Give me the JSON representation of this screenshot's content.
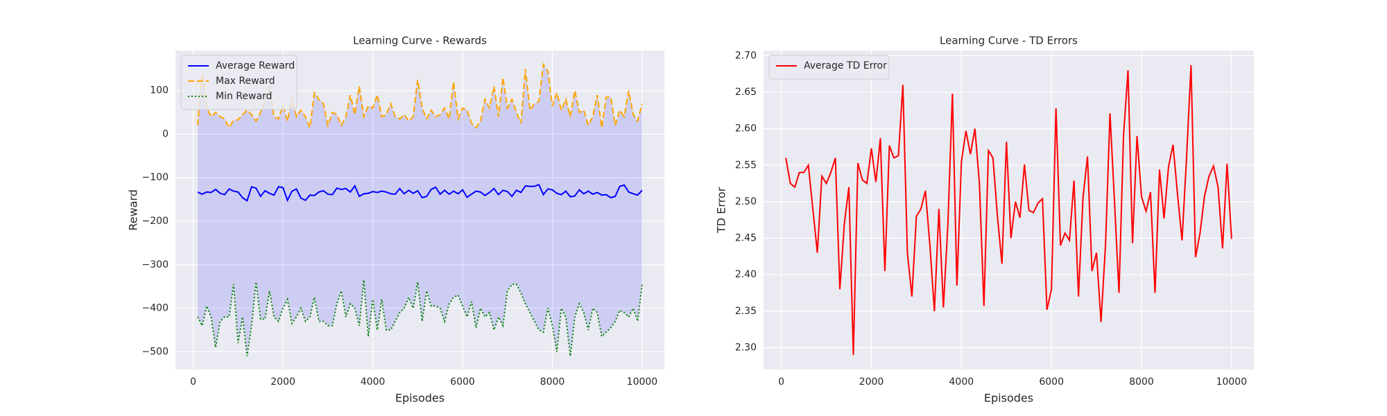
{
  "chart_data": [
    {
      "type": "line",
      "title": "Learning Curve - Rewards",
      "xlabel": "Episodes",
      "ylabel": "Reward",
      "x": [
        100,
        200,
        300,
        400,
        500,
        600,
        700,
        800,
        900,
        1000,
        1100,
        1200,
        1300,
        1400,
        1500,
        1600,
        1700,
        1800,
        1900,
        2000,
        2100,
        2200,
        2300,
        2400,
        2500,
        2600,
        2700,
        2800,
        2900,
        3000,
        3100,
        3200,
        3300,
        3400,
        3500,
        3600,
        3700,
        3800,
        3900,
        4000,
        4100,
        4200,
        4300,
        4400,
        4500,
        4600,
        4700,
        4800,
        4900,
        5000,
        5100,
        5200,
        5300,
        5400,
        5500,
        5600,
        5700,
        5800,
        5900,
        6000,
        6100,
        6200,
        6300,
        6400,
        6500,
        6600,
        6700,
        6800,
        6900,
        7000,
        7100,
        7200,
        7300,
        7400,
        7500,
        7600,
        7700,
        7800,
        7900,
        8000,
        8100,
        8200,
        8300,
        8400,
        8500,
        8600,
        8700,
        8800,
        8900,
        9000,
        9100,
        9200,
        9300,
        9400,
        9500,
        9600,
        9700,
        9800,
        9900,
        10000
      ],
      "series": [
        {
          "name": "Average Reward",
          "color": "#0000ff",
          "linestyle": "solid",
          "values": [
            -133,
            -138,
            -133,
            -134,
            -127,
            -136,
            -139,
            -126,
            -131,
            -133,
            -146,
            -153,
            -121,
            -124,
            -143,
            -130,
            -136,
            -140,
            -121,
            -123,
            -152,
            -131,
            -126,
            -147,
            -152,
            -140,
            -141,
            -133,
            -130,
            -138,
            -139,
            -124,
            -127,
            -125,
            -133,
            -119,
            -143,
            -137,
            -136,
            -132,
            -134,
            -131,
            -133,
            -137,
            -138,
            -125,
            -137,
            -129,
            -136,
            -130,
            -146,
            -143,
            -127,
            -122,
            -138,
            -129,
            -138,
            -131,
            -137,
            -128,
            -145,
            -138,
            -131,
            -133,
            -141,
            -134,
            -125,
            -139,
            -129,
            -132,
            -143,
            -129,
            -134,
            -119,
            -120,
            -120,
            -116,
            -139,
            -126,
            -128,
            -136,
            -139,
            -131,
            -144,
            -142,
            -128,
            -137,
            -131,
            -138,
            -134,
            -140,
            -139,
            -146,
            -143,
            -120,
            -117,
            -133,
            -137,
            -140,
            -129
          ]
        },
        {
          "name": "Max Reward",
          "color": "#ffa500",
          "linestyle": "dashed",
          "values": [
            20,
            140,
            60,
            40,
            50,
            40,
            35,
            15,
            32,
            33,
            45,
            55,
            45,
            30,
            50,
            75,
            110,
            40,
            35,
            65,
            30,
            85,
            40,
            55,
            40,
            15,
            95,
            80,
            70,
            20,
            50,
            45,
            20,
            40,
            90,
            45,
            110,
            40,
            65,
            60,
            90,
            40,
            45,
            70,
            40,
            35,
            45,
            30,
            40,
            125,
            60,
            35,
            55,
            40,
            45,
            60,
            35,
            120,
            35,
            60,
            55,
            25,
            15,
            30,
            80,
            60,
            110,
            40,
            130,
            60,
            80,
            50,
            25,
            150,
            55,
            70,
            75,
            160,
            145,
            65,
            95,
            55,
            80,
            40,
            100,
            50,
            55,
            20,
            40,
            90,
            15,
            85,
            85,
            20,
            55,
            40,
            100,
            45,
            30,
            70
          ]
        },
        {
          "name": "Min Reward",
          "color": "#008000",
          "linestyle": "dotted",
          "values": [
            -420,
            -440,
            -395,
            -420,
            -490,
            -430,
            -420,
            -420,
            -345,
            -480,
            -420,
            -510,
            -440,
            -340,
            -425,
            -425,
            -360,
            -420,
            -430,
            -400,
            -380,
            -435,
            -420,
            -400,
            -430,
            -420,
            -375,
            -430,
            -430,
            -440,
            -440,
            -390,
            -360,
            -420,
            -390,
            -400,
            -440,
            -335,
            -465,
            -380,
            -450,
            -380,
            -450,
            -450,
            -430,
            -410,
            -400,
            -375,
            -400,
            -340,
            -430,
            -360,
            -395,
            -395,
            -400,
            -430,
            -390,
            -375,
            -370,
            -395,
            -420,
            -385,
            -445,
            -400,
            -420,
            -410,
            -450,
            -420,
            -440,
            -360,
            -345,
            -345,
            -365,
            -390,
            -410,
            -430,
            -450,
            -455,
            -400,
            -440,
            -500,
            -400,
            -420,
            -510,
            -420,
            -390,
            -410,
            -450,
            -400,
            -410,
            -465,
            -455,
            -445,
            -430,
            -405,
            -410,
            -420,
            -400,
            -430,
            -345
          ]
        }
      ],
      "fill_between": {
        "series": [
          1,
          2
        ],
        "color": "#0000ff",
        "alpha": 0.12
      },
      "xlim": [
        -395,
        10495
      ],
      "ylim": [
        -541,
        192
      ],
      "xticks": [
        0,
        2000,
        4000,
        6000,
        8000,
        10000
      ],
      "yticks": [
        {
          "value": -500,
          "label": "−500"
        },
        {
          "value": -400,
          "label": "−400"
        },
        {
          "value": -300,
          "label": "−300"
        },
        {
          "value": -200,
          "label": "−200"
        },
        {
          "value": -100,
          "label": "−100"
        },
        0,
        100
      ],
      "grid": true,
      "legend": "upper left"
    },
    {
      "type": "line",
      "title": "Learning Curve - TD Errors",
      "xlabel": "Episodes",
      "ylabel": "TD Error",
      "x": [
        100,
        200,
        300,
        400,
        500,
        600,
        700,
        800,
        900,
        1000,
        1100,
        1200,
        1300,
        1400,
        1500,
        1600,
        1700,
        1800,
        1900,
        2000,
        2100,
        2200,
        2300,
        2400,
        2500,
        2600,
        2700,
        2800,
        2900,
        3000,
        3100,
        3200,
        3300,
        3400,
        3500,
        3600,
        3700,
        3800,
        3900,
        4000,
        4100,
        4200,
        4300,
        4400,
        4500,
        4600,
        4700,
        4800,
        4900,
        5000,
        5100,
        5200,
        5300,
        5400,
        5500,
        5600,
        5700,
        5800,
        5900,
        6000,
        6100,
        6200,
        6300,
        6400,
        6500,
        6600,
        6700,
        6800,
        6900,
        7000,
        7100,
        7200,
        7300,
        7400,
        7500,
        7600,
        7700,
        7800,
        7900,
        8000,
        8100,
        8200,
        8300,
        8400,
        8500,
        8600,
        8700,
        8800,
        8900,
        9000,
        9100,
        9200,
        9300,
        9400,
        9500,
        9600,
        9700,
        9800,
        9900,
        10000
      ],
      "series": [
        {
          "name": "Average TD Error",
          "color": "#ff0000",
          "linestyle": "solid",
          "values": [
            2.56,
            2.525,
            2.52,
            2.54,
            2.54,
            2.55,
            2.49,
            2.43,
            2.535,
            2.525,
            2.54,
            2.56,
            2.38,
            2.47,
            2.52,
            2.29,
            2.553,
            2.53,
            2.525,
            2.573,
            2.527,
            2.587,
            2.405,
            2.577,
            2.56,
            2.563,
            2.66,
            2.43,
            2.37,
            2.48,
            2.49,
            2.515,
            2.44,
            2.35,
            2.49,
            2.355,
            2.47,
            2.648,
            2.385,
            2.555,
            2.597,
            2.565,
            2.6,
            2.525,
            2.357,
            2.57,
            2.56,
            2.48,
            2.415,
            2.582,
            2.45,
            2.5,
            2.478,
            2.551,
            2.488,
            2.485,
            2.498,
            2.504,
            2.352,
            2.38,
            2.628,
            2.44,
            2.457,
            2.447,
            2.529,
            2.37,
            2.505,
            2.562,
            2.405,
            2.43,
            2.335,
            2.44,
            2.621,
            2.5,
            2.375,
            2.59,
            2.68,
            2.443,
            2.59,
            2.507,
            2.487,
            2.513,
            2.375,
            2.544,
            2.477,
            2.548,
            2.578,
            2.51,
            2.447,
            2.56,
            2.687,
            2.424,
            2.457,
            2.508,
            2.535,
            2.549,
            2.52,
            2.436,
            2.552,
            2.449
          ]
        }
      ],
      "xlim": [
        -395,
        10495
      ],
      "ylim": [
        2.27,
        2.707
      ],
      "xticks": [
        0,
        2000,
        4000,
        6000,
        8000,
        10000
      ],
      "yticks": [
        {
          "value": 2.3,
          "label": "2.30"
        },
        2.35,
        {
          "value": 2.4,
          "label": "2.40"
        },
        2.45,
        {
          "value": 2.5,
          "label": "2.50"
        },
        2.55,
        {
          "value": 2.6,
          "label": "2.60"
        },
        2.65,
        {
          "value": 2.7,
          "label": "2.70"
        }
      ],
      "grid": true,
      "legend": "upper left"
    }
  ]
}
